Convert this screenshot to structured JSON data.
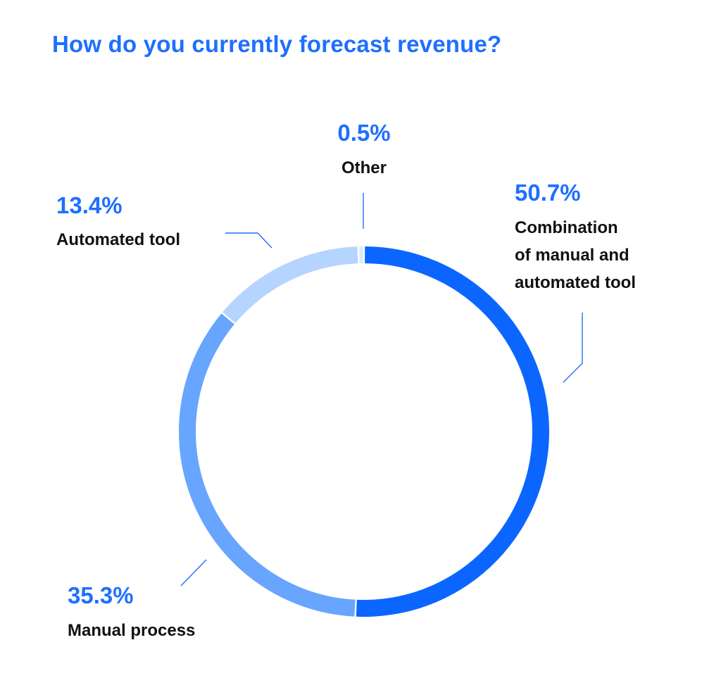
{
  "colors": {
    "title": "#1f6fff",
    "percent": "#1f6fff",
    "leader": "#1f6fff",
    "label": "#111111"
  },
  "chart_data": {
    "type": "pie",
    "variant": "donut",
    "title": "How do you currently forecast revenue?",
    "slices": [
      {
        "name": "Combination of manual and automated tool",
        "lines": [
          "Combination",
          "of manual and",
          "automated tool"
        ],
        "value": 50.7,
        "display": "50.7%",
        "color": "#0a66ff"
      },
      {
        "name": "Manual process",
        "lines": [
          "Manual process"
        ],
        "value": 35.3,
        "display": "35.3%",
        "color": "#67a5ff"
      },
      {
        "name": "Automated tool",
        "lines": [
          "Automated tool"
        ],
        "value": 13.4,
        "display": "13.4%",
        "color": "#b5d4ff"
      },
      {
        "name": "Other",
        "lines": [
          "Other"
        ],
        "value": 0.5,
        "display": "0.5%",
        "color": "#dde9ff"
      }
    ],
    "start": "top",
    "direction": "clockwise",
    "unit": "%"
  }
}
